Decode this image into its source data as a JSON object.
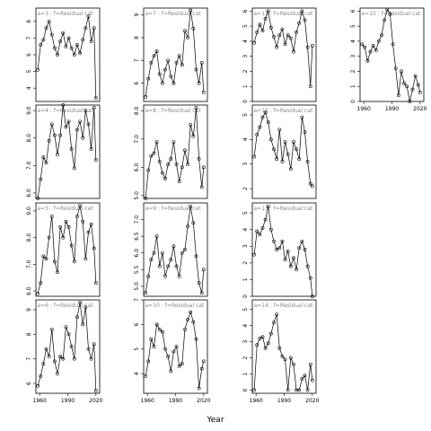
{
  "chart_data": {
    "type": "scatter",
    "xlabel": "Year",
    "x_ticks": [
      1960,
      1990,
      2020
    ],
    "xlim": [
      1956,
      2024
    ],
    "grid": false,
    "style": {
      "point_color": "#000000",
      "line_color": "#000000",
      "strip_color": "#888888"
    },
    "panels": [
      {
        "label": "a=3 : f=Residual cat",
        "col": 0,
        "row": 0,
        "ylim": [
          3.2,
          8.8
        ],
        "y_ticks": [
          4,
          5,
          6,
          7,
          8
        ],
        "x": [
          1958,
          1961,
          1964,
          1967,
          1970,
          1973,
          1976,
          1979,
          1982,
          1985,
          1988,
          1991,
          1994,
          1997,
          2000,
          2003,
          2006,
          2009,
          2012,
          2015,
          2018,
          2020
        ],
        "y": [
          5.1,
          6.6,
          6.9,
          7.6,
          8.0,
          7.2,
          6.4,
          6.0,
          6.8,
          7.3,
          6.5,
          7.0,
          6.4,
          6.0,
          6.6,
          6.1,
          6.9,
          7.6,
          8.3,
          6.8,
          7.6,
          3.4
        ]
      },
      {
        "label": "a=4 : f=Residual cat",
        "col": 0,
        "row": 1,
        "ylim": [
          5.8,
          9.2
        ],
        "y_ticks": [
          6.0,
          7.0,
          8.0,
          9.0
        ],
        "x": [
          1958,
          1961,
          1964,
          1967,
          1970,
          1973,
          1976,
          1979,
          1982,
          1985,
          1988,
          1991,
          1994,
          1997,
          2000,
          2003,
          2006,
          2009,
          2012,
          2015,
          2018,
          2020
        ],
        "y": [
          5.8,
          6.5,
          7.3,
          7.1,
          7.9,
          8.5,
          8.1,
          7.4,
          8.1,
          9.2,
          8.4,
          8.6,
          7.6,
          6.9,
          8.3,
          8.6,
          8.0,
          9.0,
          8.5,
          7.6,
          9.1,
          7.2
        ]
      },
      {
        "label": "a=5 : f=Residual cat",
        "col": 0,
        "row": 2,
        "ylim": [
          5.8,
          9.3
        ],
        "y_ticks": [
          6.0,
          7.0,
          8.0,
          9.0
        ],
        "x": [
          1958,
          1961,
          1964,
          1967,
          1970,
          1973,
          1976,
          1979,
          1982,
          1985,
          1988,
          1991,
          1994,
          1997,
          2000,
          2003,
          2006,
          2009,
          2012,
          2015,
          2018,
          2020
        ],
        "y": [
          5.9,
          6.3,
          7.3,
          7.2,
          8.0,
          8.8,
          7.1,
          6.7,
          8.4,
          8.0,
          8.6,
          8.4,
          7.7,
          7.1,
          8.8,
          9.2,
          8.6,
          7.2,
          8.2,
          8.5,
          7.6,
          6.3
        ]
      },
      {
        "label": "a=6 : f=Residual cat",
        "col": 0,
        "row": 3,
        "ylim": [
          5.6,
          9.4
        ],
        "y_ticks": [
          6,
          7,
          8,
          9
        ],
        "x": [
          1958,
          1961,
          1964,
          1967,
          1970,
          1973,
          1976,
          1979,
          1982,
          1985,
          1988,
          1991,
          1994,
          1997,
          2000,
          2003,
          2006,
          2009,
          2012,
          2015,
          2018,
          2020
        ],
        "y": [
          5.9,
          6.3,
          6.8,
          7.4,
          7.1,
          8.2,
          6.9,
          6.4,
          7.1,
          7.0,
          8.3,
          8.0,
          7.5,
          7.0,
          8.7,
          9.3,
          8.4,
          9.1,
          7.4,
          7.0,
          7.6,
          5.7
        ]
      },
      {
        "label": "a=7 : f=Residual cat",
        "col": 1,
        "row": 0,
        "ylim": [
          5.2,
          9.3
        ],
        "y_ticks": [
          6,
          7,
          8,
          9
        ],
        "x": [
          1958,
          1961,
          1964,
          1967,
          1970,
          1973,
          1976,
          1979,
          1982,
          1985,
          1988,
          1991,
          1994,
          1997,
          2000,
          2003,
          2006,
          2009,
          2012,
          2015,
          2018,
          2020
        ],
        "y": [
          5.4,
          6.2,
          6.9,
          7.2,
          7.4,
          6.4,
          6.0,
          6.6,
          7.0,
          6.3,
          6.0,
          6.9,
          7.2,
          6.8,
          8.3,
          8.0,
          9.2,
          8.4,
          6.6,
          6.0,
          6.9,
          5.6
        ]
      },
      {
        "label": "a=8 : f=Residual cat",
        "col": 1,
        "row": 1,
        "ylim": [
          4.9,
          8.2
        ],
        "y_ticks": [
          5.0,
          6.0,
          7.0,
          8.0
        ],
        "x": [
          1958,
          1961,
          1964,
          1967,
          1970,
          1973,
          1976,
          1979,
          1982,
          1985,
          1988,
          1991,
          1994,
          1997,
          2000,
          2003,
          2006,
          2009,
          2012,
          2015,
          2018,
          2020
        ],
        "y": [
          4.9,
          5.9,
          6.4,
          6.5,
          6.9,
          6.2,
          5.8,
          5.6,
          6.1,
          6.3,
          6.9,
          6.1,
          5.5,
          6.0,
          6.6,
          6.1,
          7.5,
          7.1,
          8.1,
          6.3,
          5.3,
          6.0
        ]
      },
      {
        "label": "a=9 : f=Residual cat",
        "col": 1,
        "row": 2,
        "ylim": [
          4.7,
          7.5
        ],
        "y_ticks": [
          5.0,
          5.5,
          6.0,
          6.5,
          7.0
        ],
        "x": [
          1958,
          1961,
          1964,
          1967,
          1970,
          1973,
          1976,
          1979,
          1982,
          1985,
          1988,
          1991,
          1994,
          1997,
          2000,
          2003,
          2006,
          2009,
          2012,
          2015,
          2018,
          2020
        ],
        "y": [
          4.8,
          5.3,
          5.8,
          6.0,
          6.5,
          5.6,
          6.0,
          5.3,
          5.6,
          5.8,
          6.2,
          5.6,
          5.3,
          6.0,
          6.1,
          6.8,
          7.4,
          6.9,
          5.9,
          5.1,
          4.8,
          5.5
        ]
      },
      {
        "label": "a=10 : f=Residual cat",
        "col": 1,
        "row": 3,
        "ylim": [
          3.2,
          7.0
        ],
        "y_ticks": [
          4,
          5,
          6,
          7
        ],
        "x": [
          1958,
          1961,
          1964,
          1967,
          1970,
          1973,
          1976,
          1979,
          1982,
          1985,
          1988,
          1991,
          1994,
          1997,
          2000,
          2003,
          2006,
          2009,
          2012,
          2015,
          2018,
          2020
        ],
        "y": [
          3.9,
          4.5,
          5.4,
          5.1,
          6.0,
          5.8,
          5.7,
          5.0,
          4.7,
          4.1,
          4.9,
          5.1,
          4.3,
          4.4,
          5.8,
          6.2,
          6.5,
          6.1,
          5.4,
          3.4,
          4.2,
          4.5
        ]
      },
      {
        "label": "a=11 : f=Residual cat",
        "col": 2,
        "row": 0,
        "ylim": [
          0,
          6.2
        ],
        "y_ticks": [
          0,
          1,
          2,
          3,
          4,
          5,
          6
        ],
        "x": [
          1958,
          1961,
          1964,
          1967,
          1970,
          1973,
          1976,
          1979,
          1982,
          1985,
          1988,
          1991,
          1994,
          1997,
          2000,
          2003,
          2006,
          2009,
          2012,
          2015,
          2018,
          2020
        ],
        "y": [
          3.9,
          4.6,
          5.1,
          4.7,
          5.5,
          6.0,
          4.9,
          4.3,
          3.6,
          4.4,
          4.8,
          3.8,
          4.4,
          4.2,
          3.3,
          4.6,
          5.2,
          6.0,
          5.4,
          3.6,
          1.0,
          3.7
        ]
      },
      {
        "label": "a=12 : f=Residual cat",
        "col": 2,
        "row": 1,
        "ylim": [
          1.6,
          5.4
        ],
        "y_ticks": [
          2,
          3,
          4,
          5
        ],
        "x": [
          1958,
          1961,
          1964,
          1967,
          1970,
          1973,
          1976,
          1979,
          1982,
          1985,
          1988,
          1991,
          1994,
          1997,
          2000,
          2003,
          2006,
          2009,
          2012,
          2015,
          2018,
          2020
        ],
        "y": [
          3.3,
          4.2,
          4.5,
          4.9,
          5.1,
          4.7,
          4.0,
          3.6,
          3.2,
          4.4,
          3.1,
          3.9,
          3.4,
          2.8,
          3.9,
          3.6,
          3.2,
          4.9,
          4.3,
          3.1,
          2.2,
          2.1
        ]
      },
      {
        "label": "a=13 : f=Residual cat",
        "col": 2,
        "row": 2,
        "ylim": [
          0,
          5.6
        ],
        "y_ticks": [
          0,
          1,
          2,
          3,
          4,
          5
        ],
        "x": [
          1958,
          1961,
          1964,
          1967,
          1970,
          1973,
          1976,
          1979,
          1982,
          1985,
          1988,
          1991,
          1994,
          1997,
          2000,
          2003,
          2006,
          2009,
          2012,
          2015,
          2018,
          2020
        ],
        "y": [
          2.5,
          3.9,
          3.7,
          4.1,
          4.6,
          5.4,
          4.0,
          3.3,
          2.8,
          2.9,
          3.3,
          2.2,
          2.7,
          1.8,
          2.3,
          1.6,
          2.9,
          3.3,
          2.8,
          1.8,
          1.1,
          0.0
        ]
      },
      {
        "label": "a=14 : f=Residual cat",
        "col": 2,
        "row": 3,
        "ylim": [
          -0.2,
          5.6
        ],
        "y_ticks": [
          0,
          1,
          2,
          3,
          4,
          5
        ],
        "x": [
          1958,
          1961,
          1964,
          1967,
          1970,
          1973,
          1976,
          1979,
          1982,
          1985,
          1988,
          1991,
          1994,
          1997,
          2000,
          2003,
          2006,
          2009,
          2012,
          2015,
          2018,
          2020
        ],
        "y": [
          0.0,
          2.8,
          3.2,
          3.3,
          2.6,
          2.9,
          3.5,
          4.2,
          4.7,
          2.6,
          2.1,
          1.9,
          0.0,
          2.0,
          1.6,
          0.0,
          0.0,
          0.7,
          0.9,
          0.0,
          1.6,
          0.6
        ]
      },
      {
        "label": "a=15 : f=Residual cat",
        "col": 3,
        "row": 0,
        "ylim": [
          0,
          6.2
        ],
        "y_ticks": [
          0,
          1,
          2,
          3,
          4,
          5,
          6
        ],
        "x": [
          1958,
          1961,
          1964,
          1967,
          1970,
          1973,
          1976,
          1979,
          1982,
          1985,
          1988,
          1991,
          1994,
          1997,
          2000,
          2003,
          2006,
          2009,
          2012,
          2015,
          2018,
          2020
        ],
        "y": [
          3.8,
          3.6,
          2.7,
          3.3,
          3.7,
          3.4,
          4.0,
          4.4,
          5.4,
          6.1,
          5.8,
          3.8,
          2.2,
          0.4,
          2.0,
          1.2,
          1.0,
          0.0,
          0.8,
          1.7,
          1.1,
          0.6
        ]
      }
    ]
  }
}
